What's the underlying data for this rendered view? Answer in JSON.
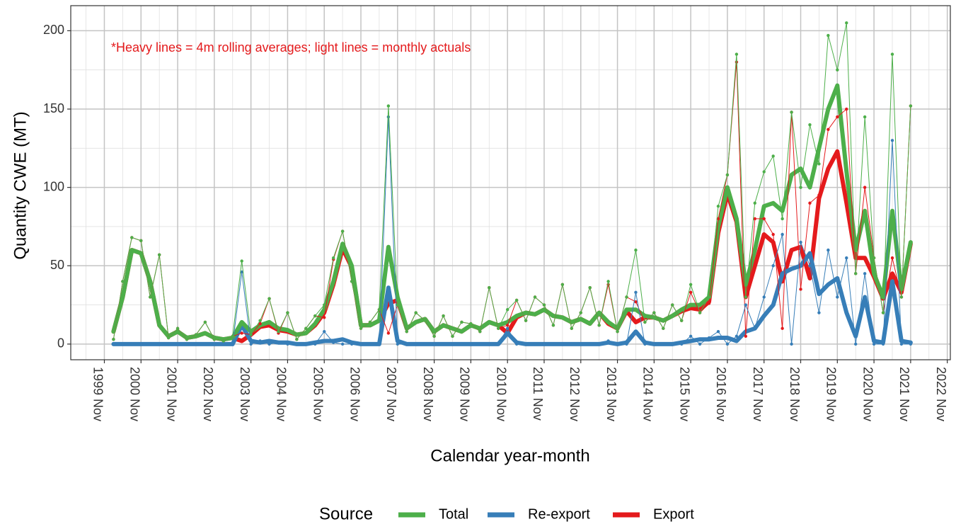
{
  "chart_data": {
    "type": "line",
    "annotation": "*Heavy lines = 4m rolling averages; light lines = monthly actuals",
    "x_label": "Calendar year-month",
    "y_label": "Quantity CWE (MT)",
    "legend_title": "Source",
    "legend_position": "bottom",
    "grid": true,
    "xlim": [
      "1998 Dec",
      "2022 Dec"
    ],
    "xticks": [
      "1999 Nov",
      "2000 Nov",
      "2001 Nov",
      "2002 Nov",
      "2003 Nov",
      "2004 Nov",
      "2005 Nov",
      "2006 Nov",
      "2007 Nov",
      "2008 Nov",
      "2009 Nov",
      "2010 Nov",
      "2011 Nov",
      "2012 Nov",
      "2013 Nov",
      "2014 Nov",
      "2015 Nov",
      "2016 Nov",
      "2017 Nov",
      "2018 Nov",
      "2019 Nov",
      "2020 Nov",
      "2021 Nov",
      "2022 Nov"
    ],
    "minor_xticks": [
      "1999 May",
      "2000 May",
      "2001 May",
      "2002 May",
      "2003 May",
      "2004 May",
      "2005 May",
      "2006 May",
      "2007 May",
      "2008 May",
      "2009 May",
      "2010 May",
      "2011 May",
      "2012 May",
      "2013 May",
      "2014 May",
      "2015 May",
      "2016 May",
      "2017 May",
      "2018 May",
      "2019 May",
      "2020 May",
      "2021 May",
      "2022 May"
    ],
    "ylim": [
      -10,
      216
    ],
    "yticks": [
      0,
      50,
      100,
      150,
      200
    ],
    "minor_yticks": [
      25,
      75,
      125,
      175
    ],
    "x": [
      "2000 Feb",
      "2000 May",
      "2000 Aug",
      "2000 Nov",
      "2001 Feb",
      "2001 May",
      "2001 Aug",
      "2001 Nov",
      "2002 Feb",
      "2002 May",
      "2002 Aug",
      "2002 Nov",
      "2003 Feb",
      "2003 May",
      "2003 Aug",
      "2003 Nov",
      "2004 Feb",
      "2004 May",
      "2004 Aug",
      "2004 Nov",
      "2005 Feb",
      "2005 May",
      "2005 Aug",
      "2005 Nov",
      "2006 Feb",
      "2006 May",
      "2006 Aug",
      "2006 Nov",
      "2007 Feb",
      "2007 May",
      "2007 Aug",
      "2007 Nov",
      "2008 Feb",
      "2008 May",
      "2008 Aug",
      "2008 Nov",
      "2009 Feb",
      "2009 May",
      "2009 Aug",
      "2009 Nov",
      "2010 Feb",
      "2010 May",
      "2010 Aug",
      "2010 Nov",
      "2011 Feb",
      "2011 May",
      "2011 Aug",
      "2011 Nov",
      "2012 Feb",
      "2012 May",
      "2012 Aug",
      "2012 Nov",
      "2013 Feb",
      "2013 May",
      "2013 Aug",
      "2013 Nov",
      "2014 Feb",
      "2014 May",
      "2014 Aug",
      "2014 Nov",
      "2015 Feb",
      "2015 May",
      "2015 Aug",
      "2015 Nov",
      "2016 Feb",
      "2016 May",
      "2016 Aug",
      "2016 Nov",
      "2017 Feb",
      "2017 May",
      "2017 Aug",
      "2017 Nov",
      "2018 Feb",
      "2018 May",
      "2018 Aug",
      "2018 Nov",
      "2019 Feb",
      "2019 May",
      "2019 Aug",
      "2019 Nov",
      "2020 Feb",
      "2020 May",
      "2020 Aug",
      "2020 Nov",
      "2021 Feb",
      "2021 May",
      "2021 Aug",
      "2021 Nov"
    ],
    "series": [
      {
        "name": "Total",
        "color": "#4daf4a",
        "values": [
          8,
          30,
          60,
          58,
          40,
          12,
          5,
          8,
          4,
          5,
          7,
          4,
          3,
          4,
          14,
          8,
          12,
          14,
          10,
          9,
          6,
          7,
          13,
          22,
          40,
          64,
          50,
          12,
          12,
          15,
          62,
          30,
          10,
          14,
          16,
          8,
          12,
          10,
          8,
          12,
          10,
          14,
          12,
          14,
          18,
          20,
          19,
          22,
          18,
          17,
          14,
          16,
          13,
          20,
          14,
          10,
          22,
          22,
          18,
          17,
          15,
          18,
          22,
          25,
          25,
          30,
          75,
          100,
          80,
          38,
          60,
          88,
          90,
          85,
          108,
          112,
          100,
          125,
          150,
          165,
          110,
          60,
          85,
          45,
          30,
          85,
          35,
          65
        ],
        "monthly_values": [
          3,
          40,
          68,
          66,
          30,
          57,
          4,
          10,
          3,
          6,
          14,
          3,
          2,
          5,
          53,
          6,
          15,
          29,
          8,
          20,
          3,
          10,
          18,
          25,
          55,
          72,
          40,
          10,
          14,
          22,
          152,
          25,
          8,
          20,
          15,
          5,
          18,
          5,
          14,
          13,
          8,
          36,
          10,
          22,
          28,
          15,
          30,
          25,
          12,
          38,
          10,
          20,
          36,
          12,
          40,
          8,
          30,
          60,
          14,
          20,
          10,
          25,
          15,
          38,
          20,
          30,
          88,
          108,
          185,
          30,
          90,
          110,
          120,
          80,
          148,
          100,
          140,
          115,
          197,
          175,
          205,
          45,
          145,
          55,
          20,
          185,
          30,
          152
        ]
      },
      {
        "name": "Re-export",
        "color": "#377eb8",
        "values": [
          0,
          0,
          0,
          0,
          0,
          0,
          0,
          0,
          0,
          0,
          0,
          0,
          0,
          0,
          12,
          2,
          1,
          2,
          1,
          1,
          0,
          0,
          1,
          2,
          2,
          3,
          1,
          0,
          0,
          0,
          36,
          2,
          0,
          0,
          0,
          0,
          0,
          0,
          0,
          0,
          0,
          0,
          0,
          7,
          1,
          0,
          0,
          0,
          0,
          0,
          0,
          0,
          0,
          0,
          1,
          0,
          1,
          8,
          1,
          0,
          0,
          0,
          1,
          2,
          3,
          3,
          4,
          4,
          2,
          8,
          10,
          18,
          25,
          45,
          48,
          50,
          58,
          32,
          38,
          42,
          20,
          5,
          30,
          2,
          1,
          40,
          2,
          1
        ],
        "monthly_values": [
          0,
          0,
          0,
          0,
          0,
          0,
          0,
          0,
          0,
          0,
          0,
          0,
          0,
          0,
          46,
          0,
          2,
          0,
          1,
          0,
          0,
          0,
          0,
          8,
          1,
          0,
          0,
          0,
          0,
          0,
          145,
          0,
          0,
          0,
          0,
          0,
          0,
          0,
          0,
          0,
          0,
          0,
          0,
          10,
          0,
          0,
          0,
          0,
          0,
          0,
          0,
          0,
          0,
          0,
          2,
          0,
          0,
          33,
          0,
          0,
          0,
          0,
          0,
          5,
          0,
          4,
          8,
          0,
          5,
          25,
          10,
          30,
          50,
          70,
          0,
          65,
          50,
          20,
          60,
          30,
          55,
          0,
          45,
          0,
          0,
          130,
          0,
          0
        ]
      },
      {
        "name": "Export",
        "color": "#e41a1c",
        "values": [
          8,
          30,
          60,
          58,
          40,
          12,
          5,
          8,
          4,
          5,
          7,
          4,
          3,
          4,
          2,
          6,
          11,
          12,
          9,
          8,
          6,
          7,
          12,
          20,
          38,
          61,
          49,
          12,
          12,
          15,
          26,
          28,
          10,
          14,
          16,
          8,
          12,
          10,
          8,
          12,
          10,
          14,
          12,
          7,
          17,
          20,
          19,
          22,
          18,
          17,
          14,
          16,
          13,
          20,
          13,
          10,
          21,
          14,
          17,
          17,
          15,
          18,
          21,
          23,
          22,
          27,
          71,
          96,
          78,
          30,
          50,
          70,
          65,
          40,
          60,
          62,
          42,
          93,
          112,
          123,
          90,
          55,
          55,
          43,
          29,
          45,
          33,
          64
        ],
        "monthly_values": [
          3,
          40,
          68,
          66,
          30,
          57,
          4,
          10,
          3,
          6,
          14,
          3,
          2,
          5,
          7,
          6,
          13,
          29,
          7,
          20,
          3,
          10,
          18,
          17,
          54,
          72,
          40,
          10,
          14,
          22,
          7,
          25,
          8,
          20,
          15,
          5,
          18,
          5,
          14,
          13,
          8,
          36,
          10,
          12,
          28,
          15,
          30,
          25,
          12,
          38,
          10,
          20,
          36,
          12,
          38,
          8,
          30,
          27,
          14,
          20,
          10,
          25,
          15,
          33,
          20,
          26,
          80,
          108,
          180,
          5,
          80,
          80,
          70,
          10,
          148,
          35,
          90,
          95,
          137,
          145,
          150,
          45,
          100,
          55,
          20,
          55,
          30,
          152
        ]
      }
    ]
  }
}
